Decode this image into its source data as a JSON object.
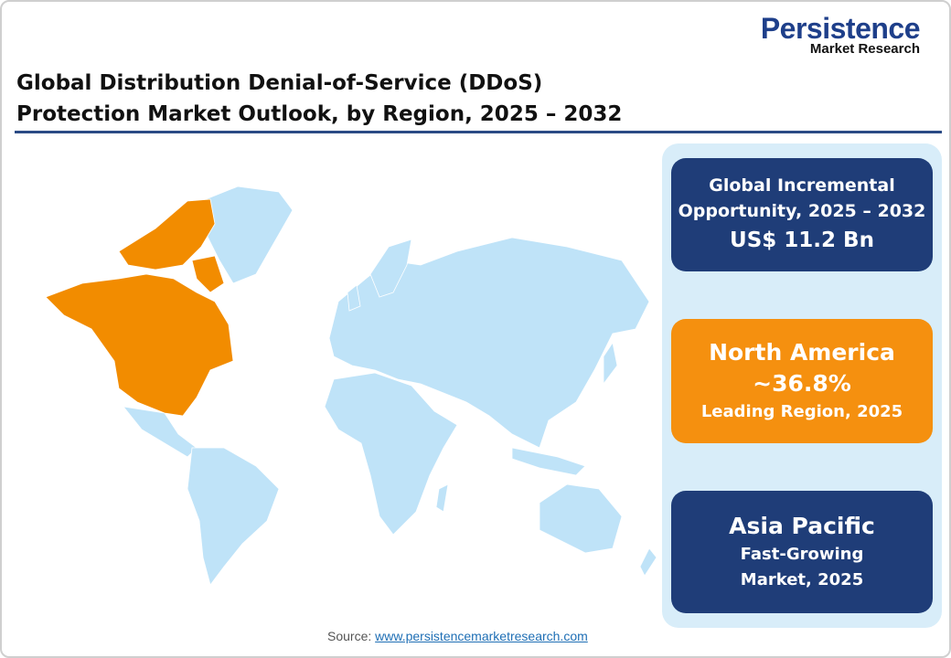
{
  "header": {
    "title": "Global Distribution Denial-of-Service (DDoS) Protection Market Outlook, by Region, 2025 – 2032",
    "logo_line1": "Persistence",
    "logo_line2": "Market Research"
  },
  "map": {
    "highlighted_region": "North America",
    "highlight_color": "#f28c00",
    "base_color": "#bfe3f8"
  },
  "cards": [
    {
      "line1": "Global Incremental Opportunity, 2025 – 2032",
      "line2": "US$ 11.2 Bn",
      "color": "#1f3d78"
    },
    {
      "line1": "North America",
      "line2": "~36.8%",
      "line3": "Leading Region, 2025",
      "color": "#f5900f"
    },
    {
      "line1": "Asia Pacific",
      "line2": "Fast-Growing Market, 2025",
      "color": "#1f3d78"
    }
  ],
  "footer": {
    "source_label": "Source:",
    "source_link": "www.persistencemarketresearch.com"
  }
}
